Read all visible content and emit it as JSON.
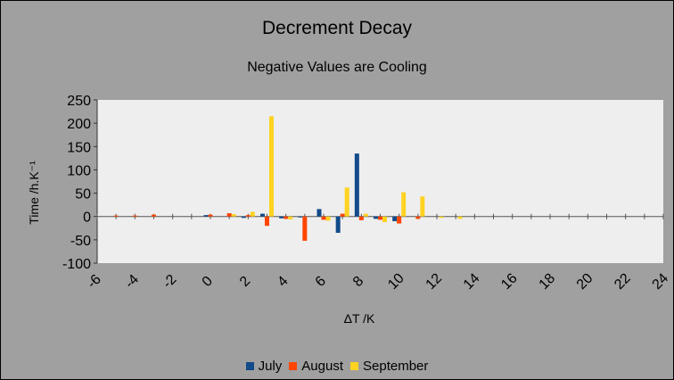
{
  "chart_data": {
    "type": "bar",
    "title": "Decrement Decay",
    "subtitle": "Negative Values are Cooling",
    "xlabel": "ΔT /K",
    "ylabel": "Time /h.K⁻¹",
    "xlim": [
      -6,
      24
    ],
    "ylim": [
      -100,
      250
    ],
    "xticks": [
      "-6",
      "-4",
      "-2",
      "0",
      "2",
      "4",
      "6",
      "8",
      "10",
      "12",
      "14",
      "16",
      "18",
      "20",
      "22",
      "24"
    ],
    "yticks": [
      "250",
      "200",
      "150",
      "100",
      "50",
      "0",
      "-50",
      "-100"
    ],
    "x": [
      -5,
      -4,
      -3,
      0,
      1,
      2,
      3,
      4,
      5,
      6,
      7,
      8,
      9,
      10,
      11,
      12,
      13
    ],
    "series": [
      {
        "name": "July",
        "color": "#124a8a",
        "values": [
          0,
          0,
          0,
          3,
          0,
          -3,
          6,
          -4,
          -2,
          16,
          -35,
          135,
          -5,
          -10,
          0,
          0,
          0
        ]
      },
      {
        "name": "August",
        "color": "#ff4500",
        "values": [
          2,
          2,
          4,
          4,
          7,
          3,
          -20,
          -5,
          -52,
          -7,
          6,
          -8,
          -7,
          -15,
          -5,
          0,
          0
        ]
      },
      {
        "name": "September",
        "color": "#ffd320",
        "values": [
          0,
          0,
          0,
          0,
          5,
          10,
          215,
          -6,
          0,
          -9,
          62,
          6,
          -12,
          52,
          43,
          -3,
          -5
        ]
      }
    ],
    "grid": false,
    "legend_position": "bottom"
  }
}
